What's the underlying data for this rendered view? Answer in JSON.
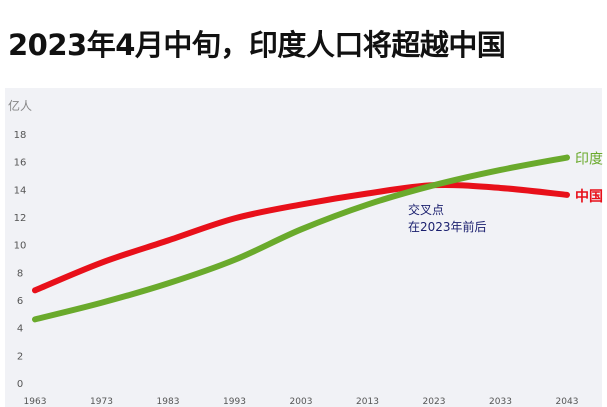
{
  "chart_data": {
    "type": "line",
    "title": "2023年4月中旬，印度人口将超越中国",
    "ylabel": "亿人",
    "xlabel": "",
    "ylim": [
      0,
      18
    ],
    "yticks": [
      0,
      2,
      4,
      6,
      8,
      10,
      12,
      14,
      16,
      18
    ],
    "x": [
      1963,
      1973,
      1983,
      1993,
      2003,
      2013,
      2023,
      2033,
      2043
    ],
    "grid": false,
    "series": [
      {
        "name": "中国",
        "color": "#e8101a",
        "values": [
          6.7,
          8.7,
          10.3,
          11.9,
          12.9,
          13.7,
          14.3,
          14.1,
          13.6
        ]
      },
      {
        "name": "印度",
        "color": "#6aaa2c",
        "values": [
          4.6,
          5.8,
          7.2,
          8.9,
          11.1,
          12.9,
          14.3,
          15.4,
          16.3
        ]
      }
    ],
    "annotations": [
      {
        "x": 2023,
        "y": 12.5,
        "lines": [
          "交叉点",
          "在2023年前后"
        ],
        "color": "#1a1f6e"
      }
    ],
    "background": "#f1f2f6"
  }
}
